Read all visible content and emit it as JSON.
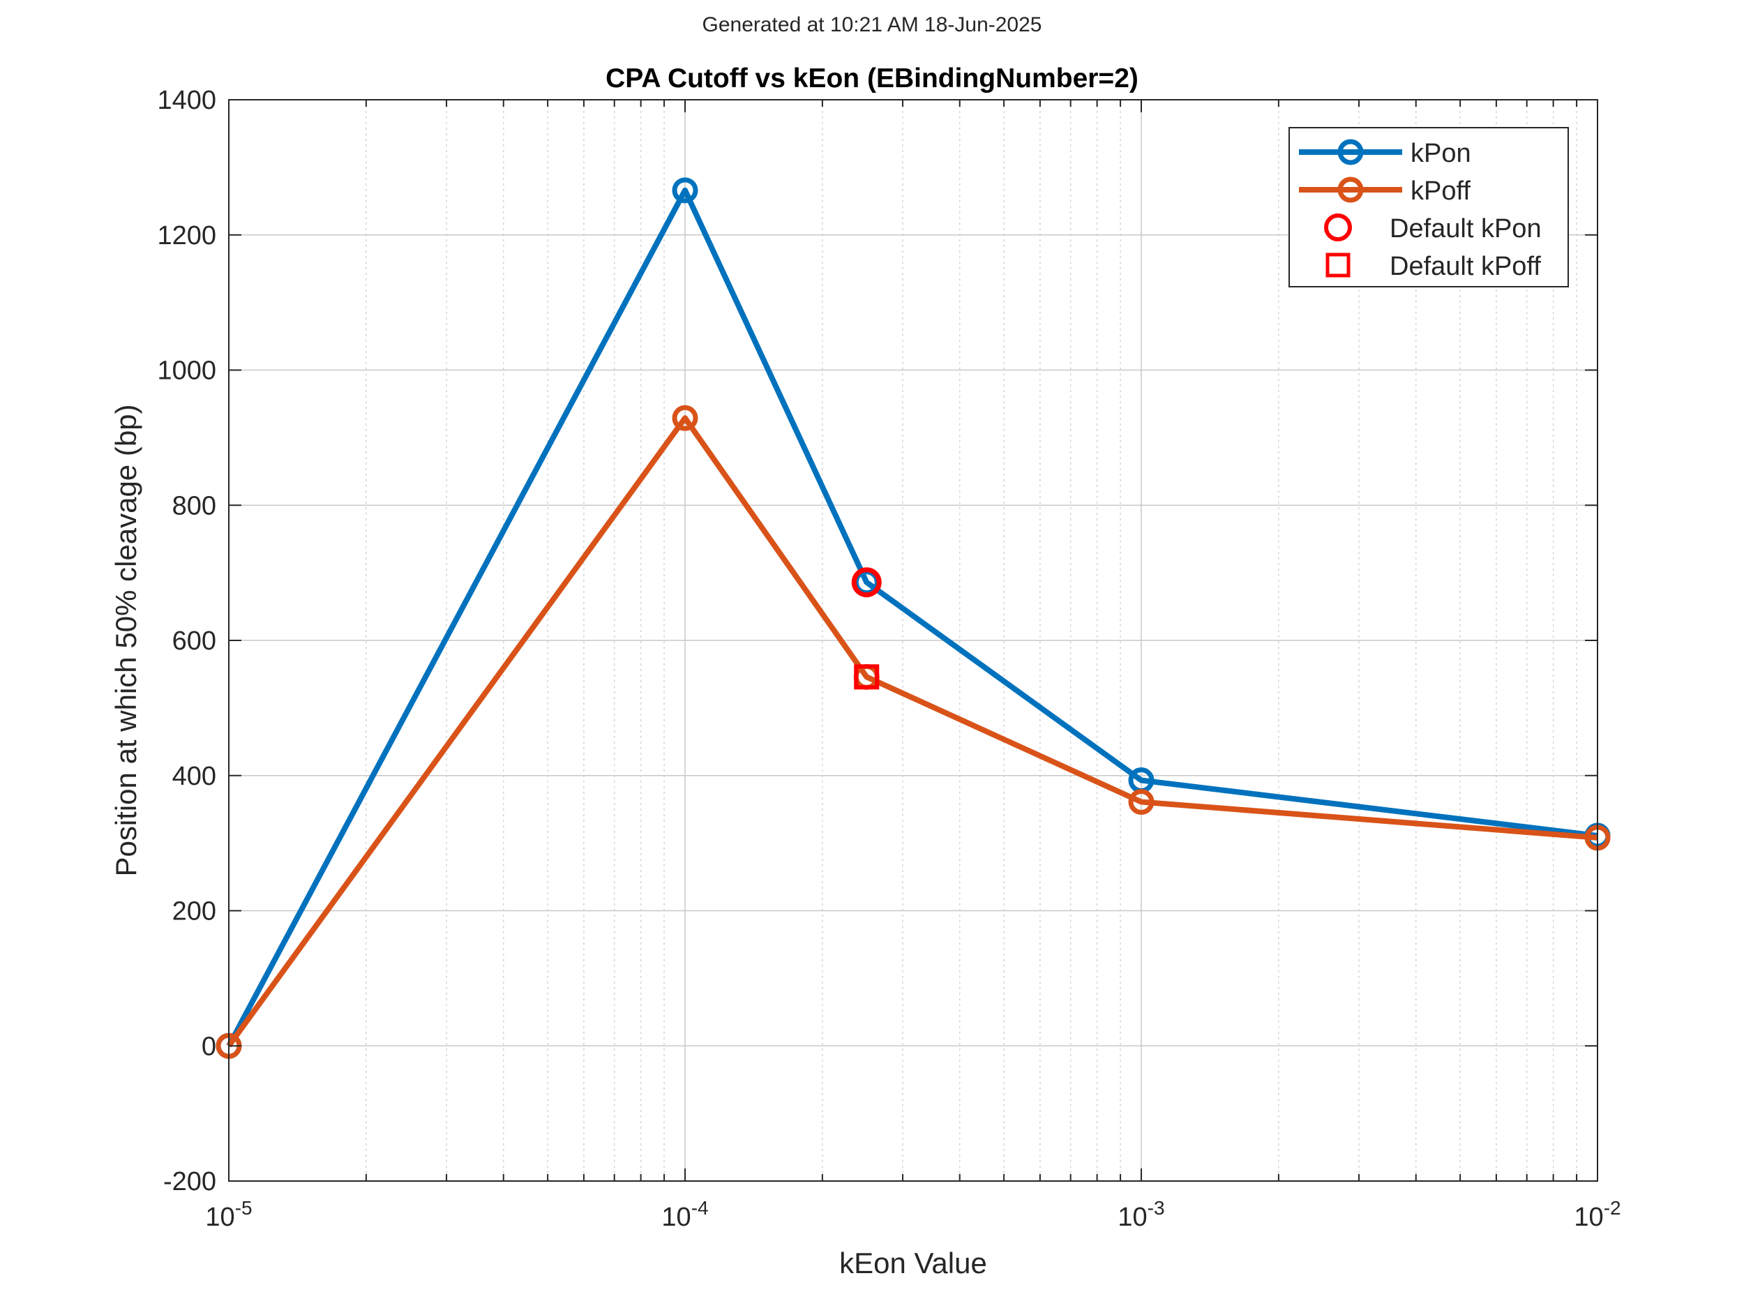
{
  "header": {
    "generated_text": "Generated at 10:21 AM 18-Jun-2025"
  },
  "chart_data": {
    "type": "line",
    "title": "CPA Cutoff vs kEon (EBindingNumber=2)",
    "xlabel": "kEon Value",
    "ylabel": "Position at which 50% cleavage (bp)",
    "xscale": "log",
    "xlim": [
      1e-05,
      0.01
    ],
    "ylim": [
      -200,
      1400
    ],
    "grid": true,
    "legend_position": "top-right",
    "x_ticks": [
      {
        "value": 1e-05,
        "base": "10",
        "exp": "-5"
      },
      {
        "value": 0.0001,
        "base": "10",
        "exp": "-4"
      },
      {
        "value": 0.001,
        "base": "10",
        "exp": "-3"
      },
      {
        "value": 0.01,
        "base": "10",
        "exp": "-2"
      }
    ],
    "y_ticks": [
      -200,
      0,
      200,
      400,
      600,
      800,
      1000,
      1200,
      1400
    ],
    "x": [
      1e-05,
      0.0001,
      0.00025,
      0.001,
      0.01
    ],
    "series": [
      {
        "name": "kPon",
        "color": "#0072BD",
        "marker": "circle",
        "values": [
          0,
          1266,
          686,
          393,
          311
        ]
      },
      {
        "name": "kPoff",
        "color": "#D95319",
        "marker": "circle",
        "values": [
          0,
          929,
          546,
          361,
          308
        ]
      }
    ],
    "defaults": [
      {
        "name": "Default kPon",
        "color": "#FF0000",
        "marker": "circle",
        "x": 0.00025,
        "y": 686
      },
      {
        "name": "Default kPoff",
        "color": "#FF0000",
        "marker": "square",
        "x": 0.00025,
        "y": 546
      }
    ]
  }
}
